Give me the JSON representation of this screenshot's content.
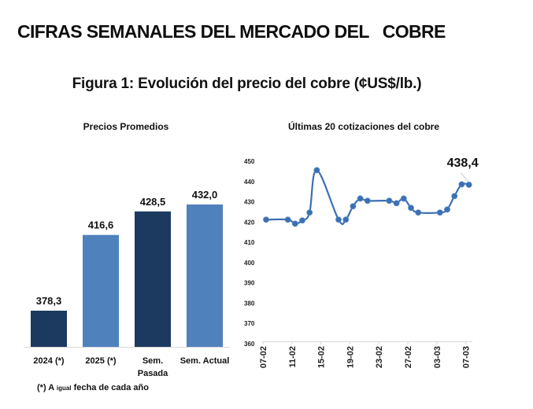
{
  "header": {
    "title": "CIFRAS SEMANALES DEL MERCADO DEL   COBRE",
    "figure_title": "Figura 1: Evolución del precio del cobre (¢US$/lb.)"
  },
  "footnote": {
    "prefix": "(*) A ",
    "small": "igual",
    "suffix": " fecha de cada año"
  },
  "colors": {
    "dark_bar": "#1c3a60",
    "light_bar": "#4f81bd",
    "line": "#3b70b2",
    "axis": "#d9d9d9"
  },
  "chart_data": [
    {
      "type": "bar",
      "title": "Precios Promedios",
      "categories": [
        [
          "2024 (*)"
        ],
        [
          "2025 (*)"
        ],
        [
          "Sem.",
          "Pasada"
        ],
        [
          "Sem. Actual"
        ]
      ],
      "values": [
        378.3,
        416.6,
        428.5,
        432.0
      ],
      "value_labels": [
        "378,3",
        "416,6",
        "428,5",
        "432,0"
      ],
      "bar_colors": [
        "dark",
        "light",
        "dark",
        "light"
      ],
      "ylim": [
        360,
        440
      ],
      "xlabel": "",
      "ylabel": "",
      "grid": false
    },
    {
      "type": "line",
      "title": "Últimas 20 cotizaciones del cobre",
      "x": [
        "07-02",
        "10-02",
        "11-02",
        "12-02",
        "13-02",
        "14-02",
        "17-02",
        "18-02",
        "19-02",
        "20-02",
        "21-02",
        "24-02",
        "25-02",
        "26-02",
        "27-02",
        "28-02",
        "03-03",
        "04-03",
        "05-03",
        "06-03",
        "07-03"
      ],
      "x_day_index": [
        0,
        3,
        4,
        5,
        6,
        7,
        10,
        11,
        12,
        13,
        14,
        17,
        18,
        19,
        20,
        21,
        24,
        25,
        26,
        27,
        28
      ],
      "values": [
        421.2,
        421.2,
        419.2,
        420.8,
        424.7,
        445.6,
        421.2,
        421.2,
        427.8,
        431.6,
        430.5,
        430.5,
        429.3,
        431.6,
        427.0,
        424.7,
        424.7,
        426.2,
        432.8,
        438.6,
        438.4
      ],
      "x_tick_labels": [
        "07-02",
        "11-02",
        "15-02",
        "19-02",
        "23-02",
        "27-02",
        "03-03",
        "07-03"
      ],
      "x_tick_day_index": [
        0,
        4,
        8,
        12,
        16,
        20,
        24,
        28
      ],
      "y_ticks": [
        360,
        370,
        380,
        390,
        400,
        410,
        420,
        430,
        440,
        450
      ],
      "ylim": [
        360,
        450
      ],
      "annotation": {
        "label": "438,4",
        "point_index": 20
      },
      "xlabel": "",
      "ylabel": "",
      "grid": false,
      "markers": true,
      "smooth": true
    }
  ]
}
